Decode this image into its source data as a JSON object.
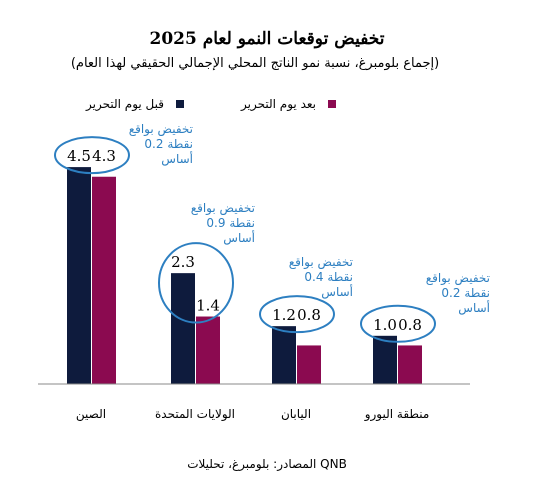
{
  "chart_data": {
    "type": "bar",
    "title": "تخفيض توقعات النمو لعام 2025",
    "subtitle": "(إجماع بلومبرغ، نسبة نمو الناتج المحلي الإجمالي الحقيقي لهذا العام)",
    "categories": [
      "الصين",
      "الولايات المتحدة",
      "اليابان",
      "منطقة اليورو"
    ],
    "series": [
      {
        "name": "قبل يوم التحرير",
        "values": [
          4.5,
          2.3,
          1.2,
          1.0
        ],
        "labels": [
          "4.5",
          "2.3",
          "1.2",
          "1.0"
        ]
      },
      {
        "name": "بعد يوم التحرير",
        "values": [
          4.3,
          1.4,
          0.8,
          0.8
        ],
        "labels": [
          "4.3",
          "1.4",
          "0.8",
          "0.8"
        ]
      }
    ],
    "annotations": [
      [
        "تخفيض بواقع",
        "0.2 نقطة",
        "أساس"
      ],
      [
        "تخفيض بواقع",
        "0.9 نقطة",
        "أساس"
      ],
      [
        "تخفيض بواقع",
        "0.4 نقطة",
        "أساس"
      ],
      [
        "تخفيض بواقع",
        "0.2 نقطة",
        "أساس"
      ]
    ],
    "ylim": [
      0,
      5
    ],
    "grid": false,
    "legend_position": "top",
    "source": "المصادر: بلومبرغ، تحليلات QNB"
  },
  "colors": {
    "before": "#0e1b3d",
    "after": "#8b0a50",
    "annotation": "#2d7fc1",
    "axis": "#888888"
  }
}
